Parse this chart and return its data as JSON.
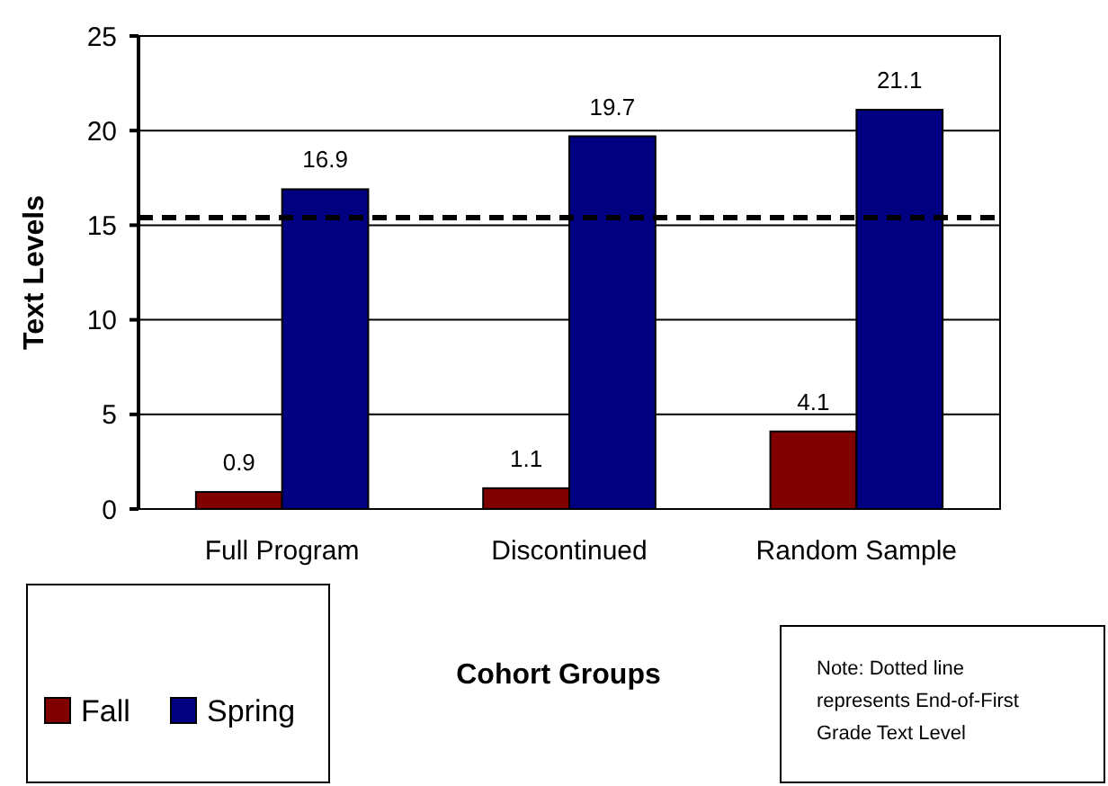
{
  "chart_data": {
    "type": "bar",
    "xlabel": "Cohort Groups",
    "ylabel": "Text Levels",
    "categories": [
      "Full Program",
      "Discontinued",
      "Random Sample"
    ],
    "series": [
      {
        "name": "Fall",
        "color": "#800000",
        "values": [
          0.9,
          1.1,
          4.1
        ]
      },
      {
        "name": "Spring",
        "color": "#000080",
        "values": [
          16.9,
          19.7,
          21.1
        ]
      }
    ],
    "ylim": [
      0,
      25
    ],
    "yticks": [
      0,
      5,
      10,
      15,
      20,
      25
    ],
    "grid": "y",
    "data_labels": true,
    "legend": "bottom left",
    "ref_lines": [
      {
        "axis": "y",
        "value": 15.4,
        "line_style": "dashed",
        "color": "#000000"
      }
    ],
    "annotations": [
      "Note: Dotted line represents End-of-First Grade Text Level"
    ]
  }
}
